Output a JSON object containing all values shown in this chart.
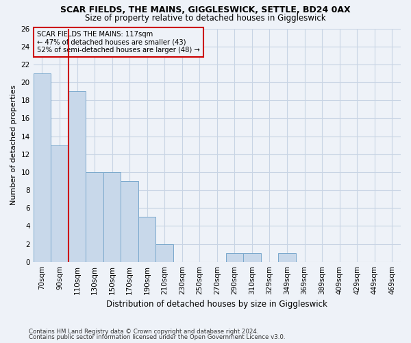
{
  "title1": "SCAR FIELDS, THE MAINS, GIGGLESWICK, SETTLE, BD24 0AX",
  "title2": "Size of property relative to detached houses in Giggleswick",
  "xlabel": "Distribution of detached houses by size in Giggleswick",
  "ylabel": "Number of detached properties",
  "categories": [
    "70sqm",
    "90sqm",
    "110sqm",
    "130sqm",
    "150sqm",
    "170sqm",
    "190sqm",
    "210sqm",
    "230sqm",
    "250sqm",
    "270sqm",
    "290sqm",
    "310sqm",
    "329sqm",
    "349sqm",
    "369sqm",
    "389sqm",
    "409sqm",
    "429sqm",
    "449sqm",
    "469sqm"
  ],
  "values": [
    21,
    13,
    19,
    10,
    10,
    9,
    5,
    2,
    0,
    0,
    0,
    1,
    1,
    0,
    1,
    0,
    0,
    0,
    0,
    0,
    0
  ],
  "bar_color": "#c8d8ea",
  "bar_edge_color": "#7aa8cc",
  "grid_color": "#c8d4e4",
  "annotation_text": "SCAR FIELDS THE MAINS: 117sqm\n← 47% of detached houses are smaller (43)\n52% of semi-detached houses are larger (48) →",
  "vline_x_index": 1.5,
  "vline_color": "#cc0000",
  "ylim": [
    0,
    26
  ],
  "yticks": [
    0,
    2,
    4,
    6,
    8,
    10,
    12,
    14,
    16,
    18,
    20,
    22,
    24,
    26
  ],
  "footnote1": "Contains HM Land Registry data © Crown copyright and database right 2024.",
  "footnote2": "Contains public sector information licensed under the Open Government Licence v3.0.",
  "bg_color": "#eef2f8",
  "title1_fontsize": 9,
  "title2_fontsize": 8.5,
  "tick_fontsize": 7.5,
  "ylabel_fontsize": 8,
  "xlabel_fontsize": 8.5
}
